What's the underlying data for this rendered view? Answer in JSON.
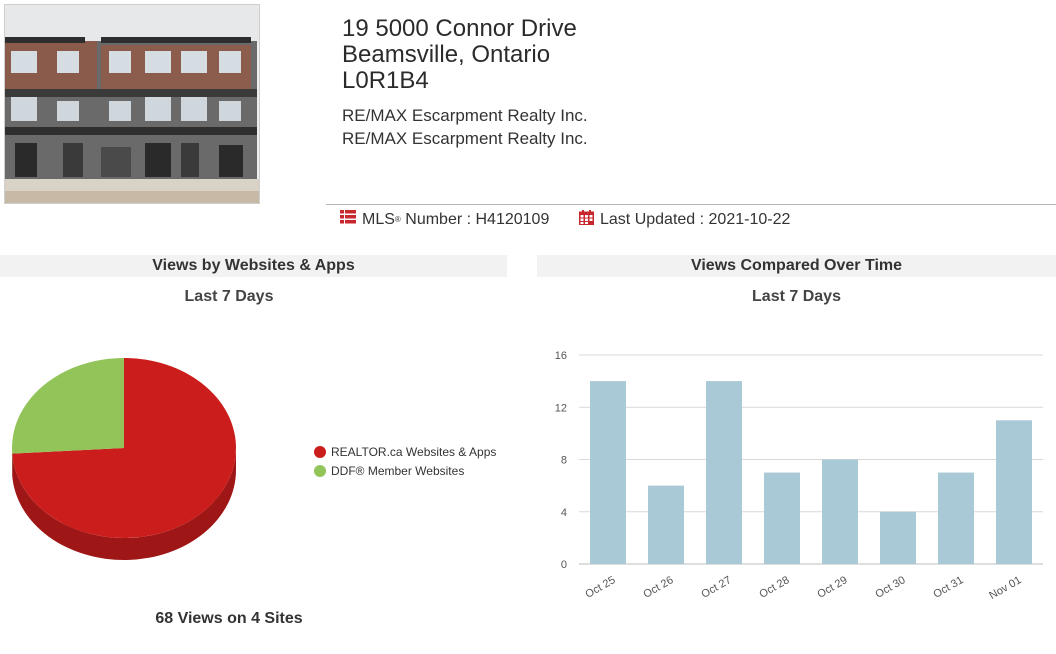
{
  "listing": {
    "address_line1": "19 5000 Connor Drive",
    "address_line2": "Beamsville, Ontario",
    "postal_code": "L0R1B4",
    "broker_1": "RE/MAX Escarpment Realty Inc.",
    "broker_2": "RE/MAX Escarpment Realty Inc.",
    "mls_label": "MLS",
    "mls_reg": "®",
    "mls_suffix": " Number : H4120109",
    "updated": "Last Updated : 2021-10-22"
  },
  "colors": {
    "realtor": "#cc1d1d",
    "ddf": "#92c45a",
    "bar": "#a9c9d6",
    "icon_red": "#c8282d"
  },
  "views_by_site": {
    "heading": "Views by Websites & Apps",
    "subheading": "Last 7 Days",
    "total_text": "68 Views on 4 Sites",
    "legend": [
      {
        "label": "REALTOR.ca Websites & Apps"
      },
      {
        "label": "DDF® Member Websites"
      }
    ]
  },
  "views_over_time": {
    "heading": "Views Compared Over Time",
    "subheading": "Last 7 Days"
  },
  "chart_data": [
    {
      "type": "pie",
      "slices": [
        {
          "label": "REALTOR.ca Websites & Apps",
          "value": 0.74
        },
        {
          "label": "DDF® Member Websites",
          "value": 0.26
        }
      ]
    },
    {
      "type": "bar",
      "categories": [
        "Oct 25",
        "Oct 26",
        "Oct 27",
        "Oct 28",
        "Oct 29",
        "Oct 30",
        "Oct 31",
        "Nov 01"
      ],
      "values": [
        14,
        6,
        14,
        7,
        8,
        4,
        7,
        11
      ],
      "yticks": [
        0,
        4,
        8,
        12,
        16
      ],
      "ylim": [
        0,
        16
      ],
      "grid": true
    }
  ]
}
